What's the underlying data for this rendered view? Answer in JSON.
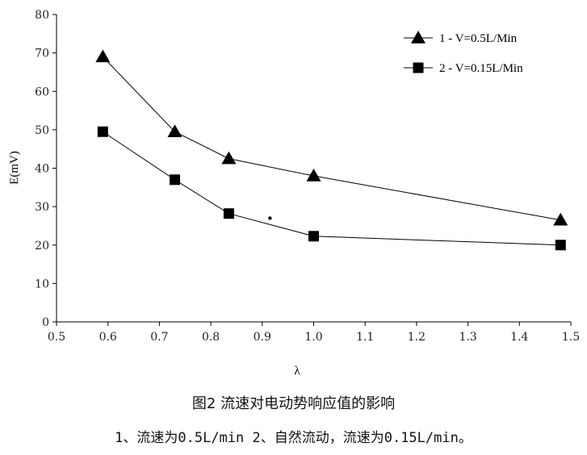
{
  "chart_data": {
    "type": "line",
    "xlabel": "λ",
    "ylabel": "E(mV)",
    "xlim": [
      0.5,
      1.5
    ],
    "ylim": [
      0,
      80
    ],
    "xticks": [
      "0.5",
      "0.6",
      "0.7",
      "0.8",
      "0.9",
      "1.0",
      "1.1",
      "1.2",
      "1.3",
      "1.4",
      "1.5"
    ],
    "yticks": [
      "0",
      "10",
      "20",
      "30",
      "40",
      "50",
      "60",
      "70",
      "80"
    ],
    "grid": false,
    "legend_position": "top-right",
    "series": [
      {
        "name": "1 - V=0.5L/Min",
        "marker": "triangle",
        "x": [
          0.59,
          0.73,
          0.835,
          1.0,
          1.48
        ],
        "y": [
          69,
          49.5,
          42.5,
          38,
          26.5
        ]
      },
      {
        "name": "2 - V=0.15L/Min",
        "marker": "square",
        "x": [
          0.59,
          0.73,
          0.835,
          1.0,
          1.48
        ],
        "y": [
          49.5,
          37,
          28.2,
          22.3,
          20
        ]
      }
    ],
    "stray_point": {
      "x": 0.915,
      "y": 27
    }
  },
  "caption": {
    "title": "图2 流速对电动势响应值的影响",
    "note": "1、流速为0.5L/min 2、自然流动，流速为0.15L/min。"
  }
}
